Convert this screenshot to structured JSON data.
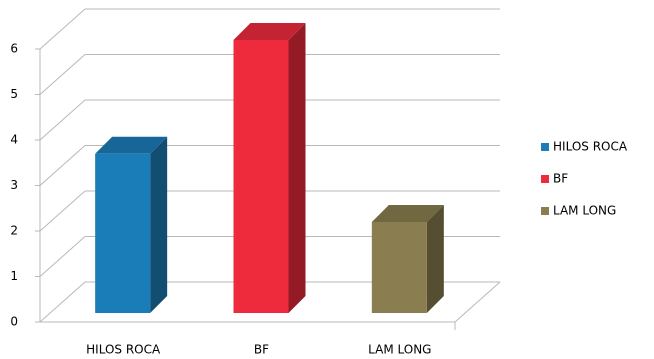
{
  "chart_data": {
    "type": "bar3d",
    "categories": [
      "HILOS ROCA",
      "BF",
      "LAM LONG"
    ],
    "series": [
      {
        "name": "HILOS ROCA",
        "color": "#1b7db8",
        "values": [
          3.5,
          null,
          null
        ]
      },
      {
        "name": "BF",
        "color": "#ee2b3d",
        "values": [
          null,
          6,
          null
        ]
      },
      {
        "name": "LAM LONG",
        "color": "#8a7d4f",
        "values": [
          null,
          null,
          2
        ]
      }
    ],
    "ylim": [
      0,
      6
    ],
    "yticks": [
      0,
      1,
      2,
      3,
      4,
      5,
      6
    ],
    "grid": true,
    "legend": "right"
  }
}
